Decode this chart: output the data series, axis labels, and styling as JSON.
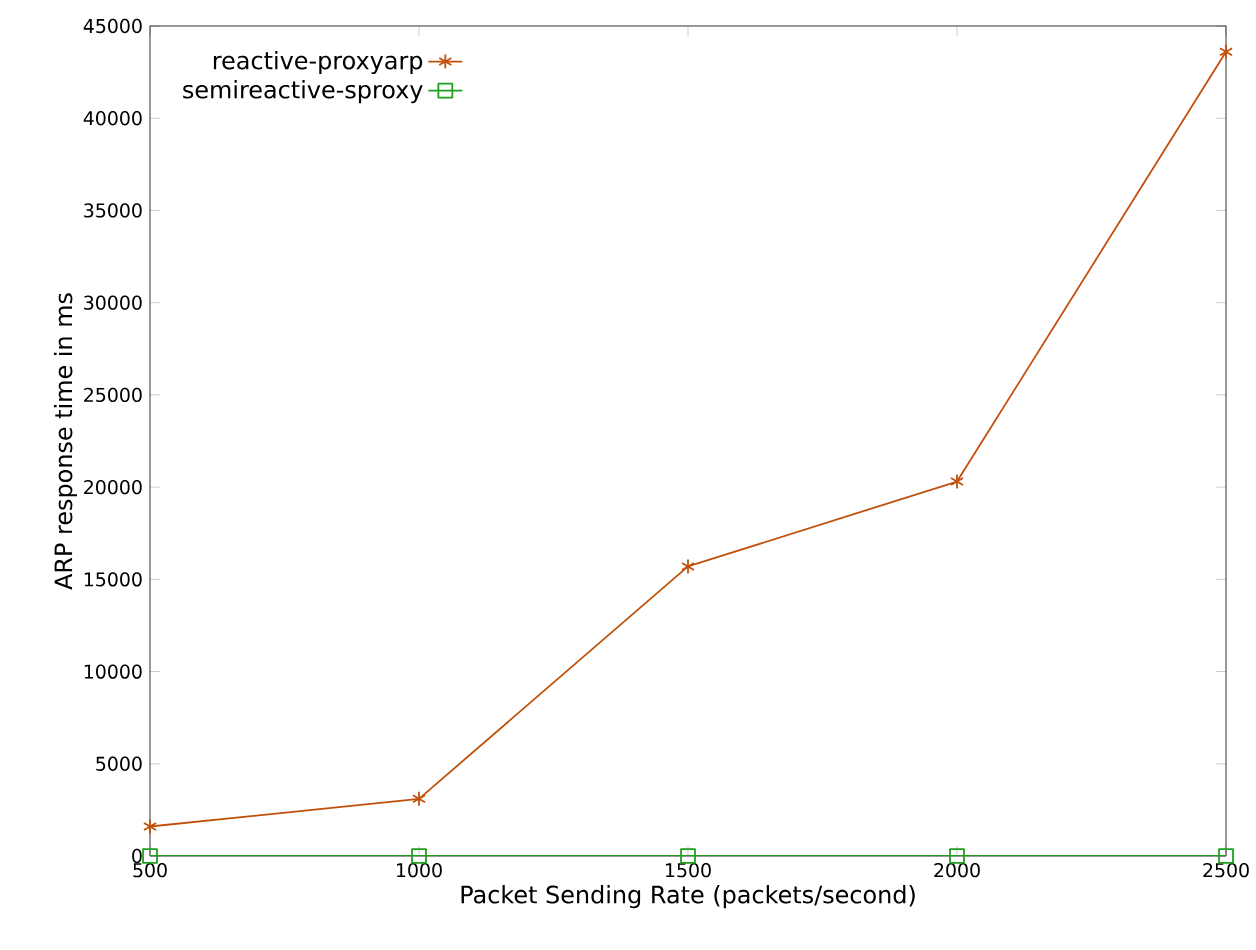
{
  "chart_data": {
    "type": "line",
    "xlabel": "Packet Sending Rate (packets/second)",
    "ylabel": "ARP response time in ms",
    "x": [
      500,
      1000,
      1500,
      2000,
      2500
    ],
    "series": [
      {
        "name": "reactive-proxyarp",
        "color": "#c0500a",
        "marker": "cross",
        "values": [
          1600,
          3100,
          15700,
          20300,
          43600
        ]
      },
      {
        "name": "semireactive-sproxy",
        "color": "#1fa01f",
        "marker": "square",
        "values": [
          0,
          0,
          0,
          0,
          0
        ]
      }
    ],
    "xlim": [
      500,
      2500
    ],
    "ylim": [
      0,
      45000
    ],
    "xticks": [
      500,
      1000,
      1500,
      2000,
      2500
    ],
    "yticks": [
      0,
      5000,
      10000,
      15000,
      20000,
      25000,
      30000,
      35000,
      40000,
      45000
    ],
    "grid": false,
    "legend": "top left",
    "line_style": "solid"
  }
}
